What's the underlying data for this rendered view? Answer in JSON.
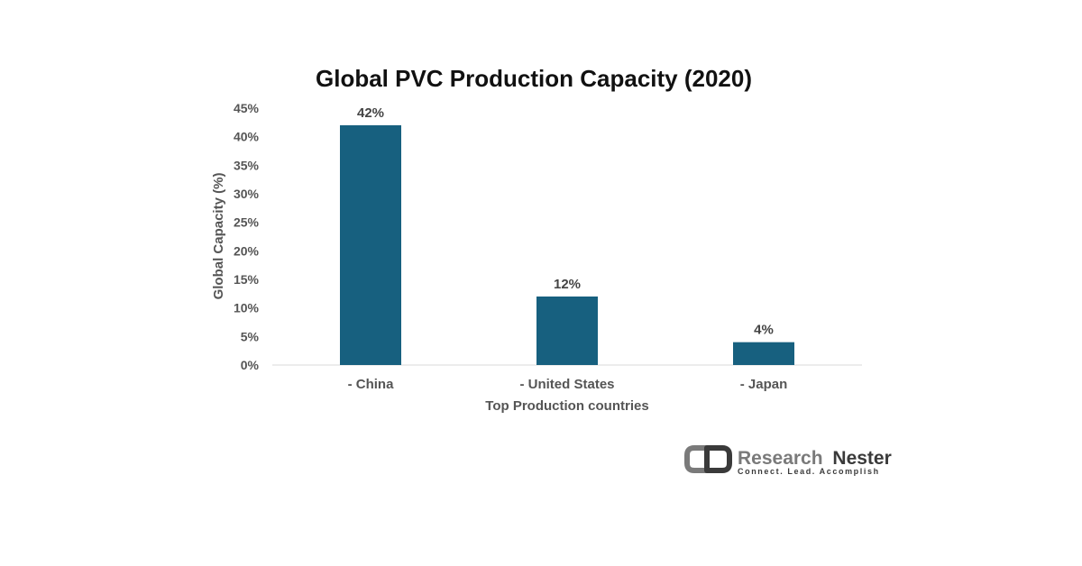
{
  "chart_data": {
    "type": "bar",
    "title": "Global PVC Production Capacity (2020)",
    "xlabel": "Top Production countries",
    "ylabel": "Global Capacity (%)",
    "categories": [
      "- China",
      "- United States",
      "- Japan"
    ],
    "values": [
      42,
      12,
      4
    ],
    "data_labels": [
      "42%",
      "12%",
      "4%"
    ],
    "yticks": [
      "0%",
      "5%",
      "10%",
      "15%",
      "20%",
      "25%",
      "30%",
      "35%",
      "40%",
      "45%"
    ],
    "ylim": [
      0,
      45
    ],
    "grid": false,
    "legend": "none"
  },
  "colors": {
    "bar": "#17607f",
    "axis": "#d9d9d9",
    "brand_dark": "#3a3a3a",
    "brand_gray": "#7a7a7a"
  },
  "brand": {
    "name_part1": "Research",
    "name_part2": "Nester",
    "tagline": "Connect. Lead. Accomplish",
    "logo_icon": "research-nester-logo-icon"
  }
}
